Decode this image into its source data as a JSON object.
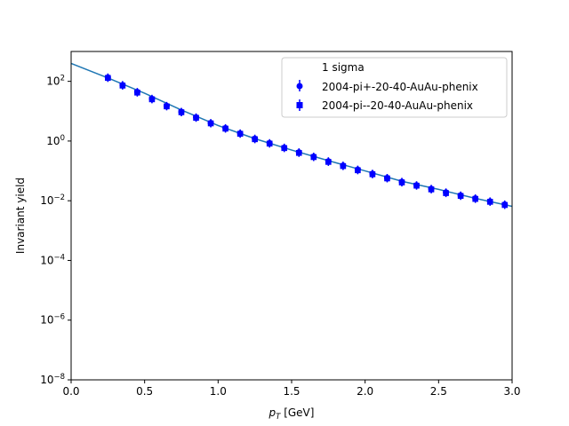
{
  "chart_data": {
    "type": "scatter",
    "title": "",
    "xlabel": "p",
    "xlabel_sub": "T",
    "xlabel_unit": " [GeV]",
    "ylabel": "Invariant yield",
    "xlim": [
      0,
      3.0
    ],
    "ylim": [
      1e-08,
      1000
    ],
    "yscale": "log",
    "grid": false,
    "legend_placement": "top-right",
    "x_ticks": [
      {
        "value": 0.0,
        "label": "0.0"
      },
      {
        "value": 0.5,
        "label": "0.5"
      },
      {
        "value": 1.0,
        "label": "1.0"
      },
      {
        "value": 1.5,
        "label": "1.5"
      },
      {
        "value": 2.0,
        "label": "2.0"
      },
      {
        "value": 2.5,
        "label": "2.5"
      },
      {
        "value": 3.0,
        "label": "3.0"
      }
    ],
    "y_ticks": [
      {
        "exp": 2,
        "base": "10",
        "sup": "2"
      },
      {
        "exp": 0,
        "base": "10",
        "sup": "0"
      },
      {
        "exp": -2,
        "base": "10",
        "sup": "−2"
      },
      {
        "exp": -4,
        "base": "10",
        "sup": "−4"
      },
      {
        "exp": -6,
        "base": "10",
        "sup": "−6"
      },
      {
        "exp": -8,
        "base": "10",
        "sup": "−8"
      }
    ],
    "fit": {
      "name": "1 sigma",
      "color": "#1f77b4",
      "x": [
        0,
        0.25,
        0.5,
        0.75,
        1.0,
        1.25,
        1.5,
        1.75,
        2.0,
        2.25,
        2.5,
        2.75,
        3.0
      ],
      "y": [
        400,
        130,
        40,
        11,
        3.3,
        1.2,
        0.5,
        0.22,
        0.1,
        0.045,
        0.024,
        0.012,
        0.0065
      ]
    },
    "series": [
      {
        "name": "2004-pi+-20-40-AuAu-phenix",
        "marker": "circle",
        "color": "#0000ff",
        "x": [
          0.25,
          0.35,
          0.45,
          0.55,
          0.65,
          0.75,
          0.85,
          0.95,
          1.05,
          1.15,
          1.25,
          1.35,
          1.45,
          1.55,
          1.65,
          1.75,
          1.85,
          1.95,
          2.05,
          2.15,
          2.25,
          2.35,
          2.45,
          2.55,
          2.65,
          2.75,
          2.85,
          2.95
        ],
        "y": [
          135,
          75,
          44,
          26,
          15,
          9.5,
          6.2,
          4.0,
          2.7,
          1.8,
          1.2,
          0.85,
          0.6,
          0.42,
          0.3,
          0.21,
          0.15,
          0.11,
          0.08,
          0.058,
          0.043,
          0.033,
          0.025,
          0.019,
          0.015,
          0.012,
          0.0095,
          0.0075
        ]
      },
      {
        "name": "2004-pi--20-40-AuAu-phenix",
        "marker": "square",
        "color": "#0000ff",
        "x": [
          0.25,
          0.35,
          0.45,
          0.55,
          0.65,
          0.75,
          0.85,
          0.95,
          1.05,
          1.15,
          1.25,
          1.35,
          1.45,
          1.55,
          1.65,
          1.75,
          1.85,
          1.95,
          2.05,
          2.15,
          2.25,
          2.35,
          2.45,
          2.55,
          2.65,
          2.75,
          2.85,
          2.95
        ],
        "y": [
          130,
          72,
          42,
          25,
          14.5,
          9.2,
          6.0,
          3.9,
          2.6,
          1.75,
          1.15,
          0.82,
          0.58,
          0.4,
          0.29,
          0.2,
          0.145,
          0.105,
          0.077,
          0.056,
          0.041,
          0.032,
          0.024,
          0.018,
          0.0145,
          0.0115,
          0.0092,
          0.0072
        ]
      }
    ]
  }
}
